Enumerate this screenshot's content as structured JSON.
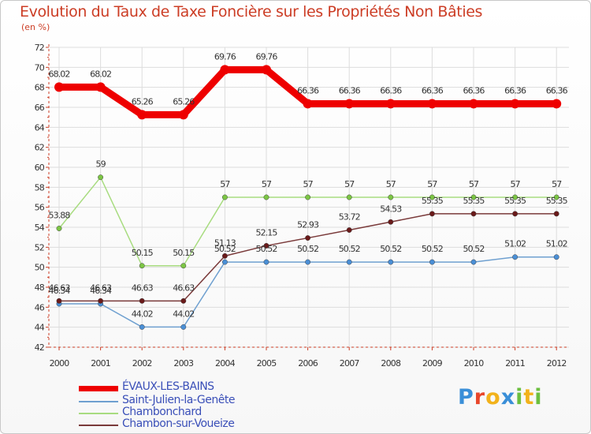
{
  "page": {
    "title": "Evolution du Taux de Taxe Foncière sur les Propriétés Non Bâties",
    "subtitle": "(en %)",
    "logo": {
      "text": "Proxiti",
      "letters": [
        "P",
        "r",
        "o",
        "x",
        "i",
        "t",
        "i"
      ],
      "colors": [
        "#3a8fd8",
        "#e8462a",
        "#f2b21b",
        "#3a8fd8",
        "#6cbf3f",
        "#f2b21b",
        "#6cbf3f"
      ]
    }
  },
  "chart_data": {
    "type": "line",
    "title": "Evolution du Taux de Taxe Foncière sur les Propriétés Non Bâties",
    "ylabel": "(en %)",
    "xlabel": "",
    "ylim": [
      42,
      72
    ],
    "yticks": [
      42,
      44,
      46,
      48,
      50,
      52,
      54,
      56,
      58,
      60,
      62,
      64,
      66,
      68,
      70,
      72
    ],
    "grid": true,
    "legend_position": "bottom-left",
    "x": [
      "2000",
      "2001",
      "2002",
      "2003",
      "2004",
      "2005",
      "2006",
      "2007",
      "2008",
      "2009",
      "2010",
      "2011",
      "2012"
    ],
    "series": [
      {
        "name": "ÉVAUX-LES-BAINS",
        "color": "#ee0000",
        "emphasis": "thick",
        "values": [
          68.02,
          68.02,
          65.26,
          65.26,
          69.76,
          69.76,
          66.36,
          66.36,
          66.36,
          66.36,
          66.36,
          66.36,
          66.36
        ],
        "labels": [
          "68.02",
          "68.02",
          "65.26",
          "65.26",
          "69.76",
          "69.76",
          "66.36",
          "66.36",
          "66.36",
          "66.36",
          "66.36",
          "66.36",
          "66.36"
        ]
      },
      {
        "name": "Saint-Julien-la-Genête",
        "color": "#6fa0d0",
        "marker_color": "#4a8fd6",
        "values": [
          46.34,
          46.34,
          44.02,
          44.02,
          50.52,
          50.52,
          50.52,
          50.52,
          50.52,
          50.52,
          50.52,
          51.02,
          51.02
        ],
        "labels": [
          "46.34",
          "46.34",
          "44.02",
          "44.02",
          "50.52",
          "50.52",
          "50.52",
          "50.52",
          "50.52",
          "50.52",
          "50.52",
          "51.02",
          "51.02"
        ]
      },
      {
        "name": "Chambonchard",
        "color": "#a8dc80",
        "marker_color": "#7cc644",
        "values": [
          53.88,
          59,
          50.15,
          50.15,
          57,
          57,
          57,
          57,
          57,
          57,
          57,
          57,
          57
        ],
        "labels": [
          "53.88",
          "59",
          "50.15",
          "50.15",
          "57",
          "57",
          "57",
          "57",
          "57",
          "57",
          "57",
          "57",
          "57"
        ]
      },
      {
        "name": "Chambon-sur-Voueize",
        "color": "#7a3a3a",
        "marker_color": "#6a1a1a",
        "values": [
          46.63,
          46.63,
          46.63,
          46.63,
          51.13,
          52.15,
          52.93,
          53.72,
          54.53,
          55.35,
          55.35,
          55.35,
          55.35
        ],
        "labels": [
          "46.63",
          "46.63",
          "46.63",
          "46.63",
          "51.13",
          "52.15",
          "52.93",
          "53.72",
          "54.53",
          "55.35",
          "55.35",
          "55.35",
          "55.35"
        ]
      }
    ]
  }
}
